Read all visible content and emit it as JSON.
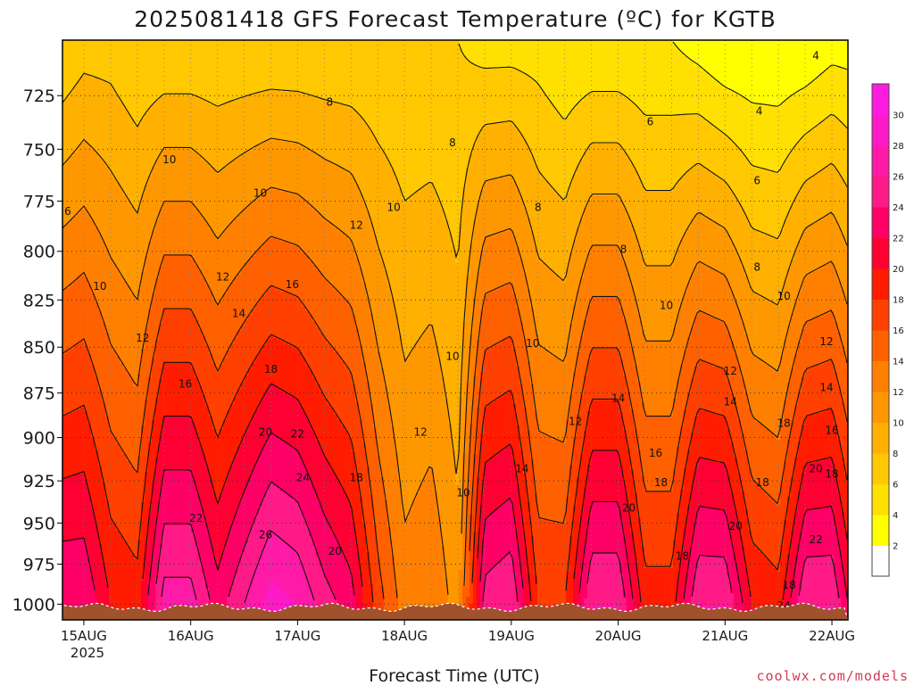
{
  "title": "2025081418 GFS Forecast Temperature (ºC) for KGTB",
  "credit": "coolwx.com/models",
  "chart_data": {
    "type": "heatmap",
    "title": "2025081418 GFS Forecast Temperature (ºC) for KGTB",
    "xlabel": "Forecast Time (UTC)",
    "ylabel": "",
    "x_ticks": [
      "15AUG",
      "16AUG",
      "17AUG",
      "18AUG",
      "19AUG",
      "20AUG",
      "21AUG",
      "22AUG"
    ],
    "x_tick_year": "2025",
    "x_range_days": [
      14.8,
      22.15
    ],
    "y_ticks": [
      725,
      750,
      775,
      800,
      825,
      850,
      875,
      900,
      925,
      950,
      975,
      1000
    ],
    "ylim": [
      1010,
      700
    ],
    "y_scale": "log",
    "colorbar": {
      "ticks": [
        2,
        4,
        6,
        8,
        10,
        12,
        14,
        16,
        18,
        20,
        22,
        24,
        26,
        28,
        30
      ],
      "colors": [
        "#ffffff",
        "#ffff00",
        "#ffe000",
        "#ffc800",
        "#ffb000",
        "#ff9800",
        "#ff8000",
        "#ff6000",
        "#ff4000",
        "#ff1c00",
        "#ff0033",
        "#ff0066",
        "#ff1a88",
        "#ff1aa8",
        "#ff1ac8",
        "#ff1ae0"
      ]
    },
    "contour_levels": [
      4,
      6,
      8,
      10,
      12,
      14,
      16,
      18,
      20,
      22,
      24,
      26
    ],
    "series": [
      {
        "day": 14.8,
        "p1000": 24,
        "p700": 6
      },
      {
        "day": 15.0,
        "p1000": 24,
        "p700": 7
      },
      {
        "day": 15.25,
        "p1000": 20,
        "p700": 7
      },
      {
        "day": 15.5,
        "p1000": 19,
        "p700": 6
      },
      {
        "day": 15.75,
        "p1000": 27,
        "p700": 6
      },
      {
        "day": 16.0,
        "p1000": 27,
        "p700": 6
      },
      {
        "day": 16.25,
        "p1000": 23,
        "p700": 6
      },
      {
        "day": 16.5,
        "p1000": 26,
        "p700": 6
      },
      {
        "day": 16.75,
        "p1000": 29,
        "p700": 6
      },
      {
        "day": 17.0,
        "p1000": 28,
        "p700": 6
      },
      {
        "day": 17.25,
        "p1000": 25,
        "p700": 6
      },
      {
        "day": 17.5,
        "p1000": 23,
        "p700": 6
      },
      {
        "day": 17.75,
        "p1000": 17,
        "p700": 6
      },
      {
        "day": 18.0,
        "p1000": 13,
        "p700": 6
      },
      {
        "day": 18.25,
        "p1000": 14,
        "p700": 6
      },
      {
        "day": 18.5,
        "p1000": 11,
        "p700": 6
      },
      {
        "day": 18.75,
        "p1000": 25,
        "p700": 5
      },
      {
        "day": 19.0,
        "p1000": 26,
        "p700": 5
      },
      {
        "day": 19.25,
        "p1000": 18,
        "p700": 5
      },
      {
        "day": 19.5,
        "p1000": 18,
        "p700": 4
      },
      {
        "day": 19.75,
        "p1000": 26,
        "p700": 4
      },
      {
        "day": 20.0,
        "p1000": 26,
        "p700": 4
      },
      {
        "day": 20.25,
        "p1000": 19,
        "p700": 4
      },
      {
        "day": 20.5,
        "p1000": 19,
        "p700": 4
      },
      {
        "day": 20.75,
        "p1000": 26,
        "p700": 3
      },
      {
        "day": 21.0,
        "p1000": 26,
        "p700": 2
      },
      {
        "day": 21.25,
        "p1000": 20,
        "p700": 2
      },
      {
        "day": 21.5,
        "p1000": 19,
        "p700": 2
      },
      {
        "day": 21.75,
        "p1000": 26,
        "p700": 2
      },
      {
        "day": 22.0,
        "p1000": 26,
        "p700": 3
      },
      {
        "day": 22.15,
        "p1000": 22,
        "p700": 3
      }
    ],
    "contour_labels": [
      {
        "text": "4",
        "day": 21.85,
        "p": 707
      },
      {
        "text": "4",
        "day": 21.32,
        "p": 732
      },
      {
        "text": "6",
        "day": 20.3,
        "p": 737
      },
      {
        "text": "6",
        "day": 21.3,
        "p": 765
      },
      {
        "text": "6",
        "day": 14.85,
        "p": 780
      },
      {
        "text": "8",
        "day": 17.3,
        "p": 728
      },
      {
        "text": "8",
        "day": 18.45,
        "p": 747
      },
      {
        "text": "8",
        "day": 19.25,
        "p": 778
      },
      {
        "text": "8",
        "day": 20.05,
        "p": 799
      },
      {
        "text": "8",
        "day": 21.3,
        "p": 808
      },
      {
        "text": "10",
        "day": 15.8,
        "p": 755
      },
      {
        "text": "10",
        "day": 16.65,
        "p": 771
      },
      {
        "text": "10",
        "day": 17.9,
        "p": 778
      },
      {
        "text": "10",
        "day": 15.15,
        "p": 818
      },
      {
        "text": "10",
        "day": 18.45,
        "p": 855
      },
      {
        "text": "10",
        "day": 19.2,
        "p": 848
      },
      {
        "text": "10",
        "day": 20.45,
        "p": 828
      },
      {
        "text": "10",
        "day": 21.55,
        "p": 823
      },
      {
        "text": "10",
        "day": 18.55,
        "p": 932
      },
      {
        "text": "12",
        "day": 17.55,
        "p": 787
      },
      {
        "text": "12",
        "day": 16.3,
        "p": 813
      },
      {
        "text": "12",
        "day": 15.55,
        "p": 845
      },
      {
        "text": "12",
        "day": 18.15,
        "p": 897
      },
      {
        "text": "12",
        "day": 19.6,
        "p": 891
      },
      {
        "text": "12",
        "day": 21.05,
        "p": 863
      },
      {
        "text": "12",
        "day": 21.95,
        "p": 847
      },
      {
        "text": "14",
        "day": 16.45,
        "p": 832
      },
      {
        "text": "14",
        "day": 19.1,
        "p": 918
      },
      {
        "text": "14",
        "day": 20.0,
        "p": 878
      },
      {
        "text": "14",
        "day": 21.05,
        "p": 880
      },
      {
        "text": "14",
        "day": 21.95,
        "p": 872
      },
      {
        "text": "16",
        "day": 16.95,
        "p": 817
      },
      {
        "text": "16",
        "day": 15.95,
        "p": 870
      },
      {
        "text": "16",
        "day": 20.35,
        "p": 909
      },
      {
        "text": "16",
        "day": 22.0,
        "p": 896
      },
      {
        "text": "18",
        "day": 16.75,
        "p": 862
      },
      {
        "text": "18",
        "day": 20.4,
        "p": 926
      },
      {
        "text": "18",
        "day": 21.35,
        "p": 926
      },
      {
        "text": "18",
        "day": 21.55,
        "p": 892
      },
      {
        "text": "18",
        "day": 17.55,
        "p": 923
      },
      {
        "text": "18",
        "day": 20.6,
        "p": 970
      },
      {
        "text": "18",
        "day": 21.6,
        "p": 988
      },
      {
        "text": "18",
        "day": 22.0,
        "p": 921
      },
      {
        "text": "20",
        "day": 16.7,
        "p": 897
      },
      {
        "text": "20",
        "day": 20.1,
        "p": 941
      },
      {
        "text": "20",
        "day": 21.1,
        "p": 952
      },
      {
        "text": "20",
        "day": 21.85,
        "p": 918
      },
      {
        "text": "20",
        "day": 17.35,
        "p": 967
      },
      {
        "text": "22",
        "day": 16.05,
        "p": 947
      },
      {
        "text": "22",
        "day": 17.0,
        "p": 898
      },
      {
        "text": "22",
        "day": 21.85,
        "p": 960
      },
      {
        "text": "24",
        "day": 17.05,
        "p": 923
      },
      {
        "text": "24",
        "day": 21.55,
        "p": 1001
      },
      {
        "text": "26",
        "day": 16.7,
        "p": 957
      }
    ]
  }
}
